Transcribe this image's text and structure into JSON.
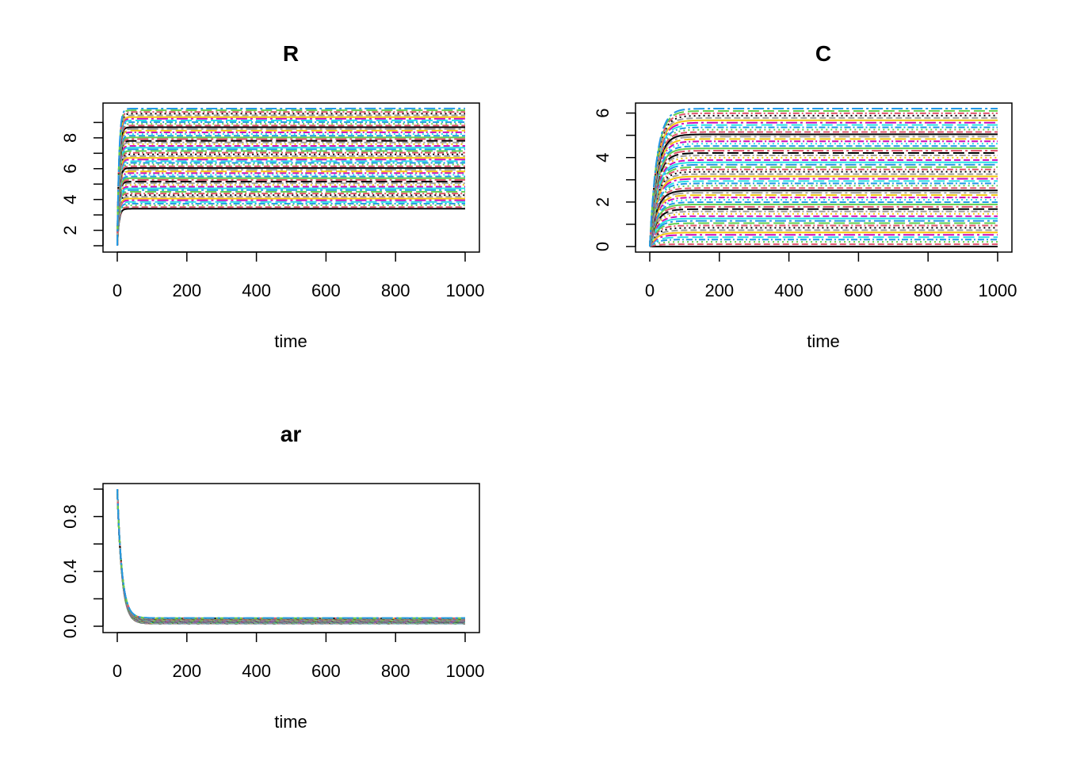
{
  "palette": [
    "#000000",
    "#DF536B",
    "#61D04F",
    "#2297E6",
    "#28E2E5",
    "#CD0BBC",
    "#F5C710",
    "#9E9E9E"
  ],
  "line_dashes": [
    "",
    "8,4",
    "2,4",
    "8,3,2,3",
    "14,5",
    "14,4,3,4"
  ],
  "chart_data": [
    {
      "type": "line",
      "title": "R",
      "xlabel": "time",
      "ylabel": "",
      "xlim": [
        0,
        1000
      ],
      "ylim": [
        1,
        10
      ],
      "x_ticks": [
        0,
        200,
        400,
        600,
        800,
        1000
      ],
      "y_ticks": [
        2,
        4,
        6,
        8
      ],
      "x_tick_labels": [
        "0",
        "200",
        "400",
        "600",
        "800",
        "1000"
      ],
      "y_tick_labels": [
        "2",
        "4",
        "6",
        "8"
      ],
      "y_minor_ticks": [
        1,
        3,
        5,
        7,
        9
      ],
      "series_count": 60,
      "initial_value": 1,
      "plateau_range": [
        3.4,
        9.9
      ],
      "rise_time": 15,
      "grid": false,
      "legend": "none"
    },
    {
      "type": "line",
      "title": "C",
      "xlabel": "time",
      "ylabel": "",
      "xlim": [
        0,
        1000
      ],
      "ylim": [
        0,
        6.2
      ],
      "x_ticks": [
        0,
        200,
        400,
        600,
        800,
        1000
      ],
      "y_ticks": [
        0,
        2,
        4,
        6
      ],
      "x_tick_labels": [
        "0",
        "200",
        "400",
        "600",
        "800",
        "1000"
      ],
      "y_tick_labels": [
        "0",
        "2",
        "4",
        "6"
      ],
      "y_minor_ticks": [
        1,
        3,
        5
      ],
      "series_count": 60,
      "initial_value": 0,
      "plateau_range": [
        0,
        6.2
      ],
      "rise_time": 60,
      "grid": false,
      "legend": "none"
    },
    {
      "type": "line",
      "title": "ar",
      "xlabel": "time",
      "ylabel": "",
      "xlim": [
        0,
        1000
      ],
      "ylim": [
        0,
        1
      ],
      "x_ticks": [
        0,
        200,
        400,
        600,
        800,
        1000
      ],
      "y_ticks": [
        0,
        0.4,
        0.8
      ],
      "x_tick_labels": [
        "0",
        "200",
        "400",
        "600",
        "800",
        "1000"
      ],
      "y_tick_labels": [
        "0.0",
        "0.4",
        "0.8"
      ],
      "y_minor_ticks": [
        0.2,
        0.6,
        1.0
      ],
      "series_count": 60,
      "initial_value": 1,
      "plateau_range": [
        0.02,
        0.06
      ],
      "rise_time": 40,
      "grid": false,
      "legend": "none"
    }
  ]
}
